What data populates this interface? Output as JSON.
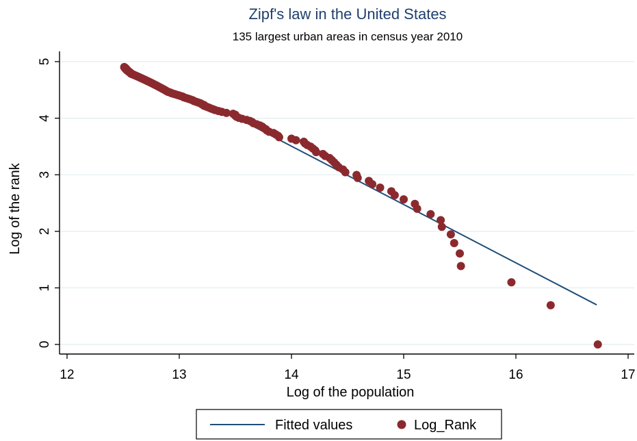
{
  "chart_data": {
    "type": "scatter",
    "title": "Zipf's law in the United States",
    "subtitle": "135 largest urban areas in census year 2010",
    "xlabel": "Log of the population",
    "ylabel": "Log of the rank",
    "xlim": [
      12,
      17
    ],
    "ylim": [
      0,
      5
    ],
    "xticks": [
      "12",
      "13",
      "14",
      "15",
      "16",
      "17"
    ],
    "yticks": [
      "0",
      "1",
      "2",
      "3",
      "4",
      "5"
    ],
    "grid": true,
    "legend_position": "bottom",
    "colors": {
      "fitted": "#1f4e79",
      "points": "#8b2a2e",
      "title": "#1f3f6e",
      "grid": "#e3ecef"
    },
    "series": [
      {
        "name": "Fitted values",
        "kind": "line",
        "points": [
          [
            13.52,
            4.0
          ],
          [
            16.72,
            0.7
          ]
        ]
      },
      {
        "name": "Log_Rank",
        "kind": "scatter",
        "points": [
          [
            16.73,
            0.0
          ],
          [
            16.31,
            0.693
          ],
          [
            15.96,
            1.099
          ],
          [
            15.51,
            1.386
          ],
          [
            15.5,
            1.609
          ],
          [
            15.45,
            1.792
          ],
          [
            15.42,
            1.946
          ],
          [
            15.34,
            2.079
          ],
          [
            15.33,
            2.197
          ],
          [
            15.24,
            2.303
          ],
          [
            15.12,
            2.398
          ],
          [
            15.1,
            2.485
          ],
          [
            15.0,
            2.565
          ],
          [
            14.92,
            2.639
          ],
          [
            14.89,
            2.708
          ],
          [
            14.79,
            2.773
          ],
          [
            14.72,
            2.833
          ],
          [
            14.69,
            2.89
          ],
          [
            14.59,
            2.944
          ],
          [
            14.58,
            2.996
          ],
          [
            14.48,
            3.045
          ],
          [
            14.46,
            3.091
          ],
          [
            14.42,
            3.135
          ],
          [
            14.4,
            3.178
          ],
          [
            14.38,
            3.219
          ],
          [
            14.36,
            3.258
          ],
          [
            14.34,
            3.296
          ],
          [
            14.3,
            3.332
          ],
          [
            14.28,
            3.367
          ],
          [
            14.22,
            3.401
          ],
          [
            14.21,
            3.434
          ],
          [
            14.19,
            3.466
          ],
          [
            14.17,
            3.497
          ],
          [
            14.14,
            3.526
          ],
          [
            14.12,
            3.555
          ],
          [
            14.11,
            3.584
          ],
          [
            14.04,
            3.611
          ],
          [
            14.0,
            3.638
          ],
          [
            13.89,
            3.664
          ],
          [
            13.88,
            3.689
          ],
          [
            13.86,
            3.714
          ],
          [
            13.84,
            3.738
          ],
          [
            13.8,
            3.761
          ],
          [
            13.78,
            3.784
          ],
          [
            13.77,
            3.807
          ],
          [
            13.75,
            3.829
          ],
          [
            13.74,
            3.85
          ],
          [
            13.72,
            3.871
          ],
          [
            13.69,
            3.892
          ],
          [
            13.66,
            3.912
          ],
          [
            13.65,
            3.932
          ],
          [
            13.63,
            3.951
          ],
          [
            13.6,
            3.97
          ],
          [
            13.56,
            3.989
          ],
          [
            13.53,
            4.007
          ],
          [
            13.51,
            4.025
          ],
          [
            13.5,
            4.043
          ],
          [
            13.5,
            4.06
          ],
          [
            13.48,
            4.078
          ],
          [
            13.42,
            4.094
          ],
          [
            13.38,
            4.111
          ],
          [
            13.35,
            4.127
          ],
          [
            13.32,
            4.143
          ],
          [
            13.3,
            4.159
          ],
          [
            13.28,
            4.174
          ],
          [
            13.26,
            4.19
          ],
          [
            13.24,
            4.205
          ],
          [
            13.22,
            4.22
          ],
          [
            13.22,
            4.234
          ],
          [
            13.2,
            4.248
          ],
          [
            13.19,
            4.263
          ],
          [
            13.17,
            4.277
          ],
          [
            13.15,
            4.29
          ],
          [
            13.13,
            4.304
          ],
          [
            13.12,
            4.317
          ],
          [
            13.1,
            4.331
          ],
          [
            13.08,
            4.344
          ],
          [
            13.06,
            4.357
          ],
          [
            13.04,
            4.369
          ],
          [
            13.03,
            4.382
          ],
          [
            13.01,
            4.394
          ],
          [
            12.99,
            4.407
          ],
          [
            12.97,
            4.419
          ],
          [
            12.95,
            4.431
          ],
          [
            12.93,
            4.443
          ],
          [
            12.92,
            4.454
          ],
          [
            12.9,
            4.466
          ],
          [
            12.89,
            4.477
          ],
          [
            12.88,
            4.489
          ],
          [
            12.87,
            4.5
          ],
          [
            12.86,
            4.511
          ],
          [
            12.85,
            4.522
          ],
          [
            12.84,
            4.533
          ],
          [
            12.83,
            4.543
          ],
          [
            12.82,
            4.554
          ],
          [
            12.81,
            4.564
          ],
          [
            12.8,
            4.575
          ],
          [
            12.79,
            4.585
          ],
          [
            12.78,
            4.595
          ],
          [
            12.77,
            4.605
          ],
          [
            12.76,
            4.615
          ],
          [
            12.75,
            4.625
          ],
          [
            12.74,
            4.635
          ],
          [
            12.73,
            4.644
          ],
          [
            12.72,
            4.654
          ],
          [
            12.71,
            4.663
          ],
          [
            12.7,
            4.673
          ],
          [
            12.69,
            4.682
          ],
          [
            12.68,
            4.691
          ],
          [
            12.67,
            4.7
          ],
          [
            12.66,
            4.71
          ],
          [
            12.65,
            4.718
          ],
          [
            12.64,
            4.727
          ],
          [
            12.63,
            4.736
          ],
          [
            12.62,
            4.745
          ],
          [
            12.61,
            4.754
          ],
          [
            12.6,
            4.762
          ],
          [
            12.59,
            4.771
          ],
          [
            12.58,
            4.779
          ],
          [
            12.57,
            4.787
          ],
          [
            12.57,
            4.796
          ],
          [
            12.56,
            4.804
          ],
          [
            12.56,
            4.812
          ],
          [
            12.55,
            4.82
          ],
          [
            12.55,
            4.828
          ],
          [
            12.54,
            4.836
          ],
          [
            12.54,
            4.844
          ],
          [
            12.53,
            4.852
          ],
          [
            12.53,
            4.86
          ],
          [
            12.53,
            4.868
          ],
          [
            12.52,
            4.875
          ],
          [
            12.52,
            4.883
          ],
          [
            12.52,
            4.89
          ],
          [
            12.51,
            4.898
          ],
          [
            12.51,
            4.905
          ]
        ]
      }
    ]
  }
}
